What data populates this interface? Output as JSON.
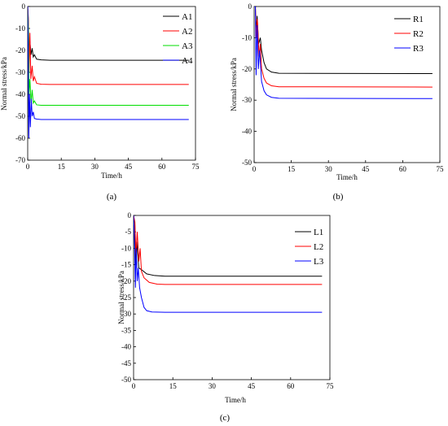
{
  "chart_data": [
    {
      "type": "line",
      "panel_label": "(a)",
      "xlabel": "Time/h",
      "ylabel": "Normal stress/kPa",
      "xlim": [
        0,
        75
      ],
      "ylim": [
        -70,
        0
      ],
      "xticks": [
        0,
        15,
        30,
        45,
        60,
        75
      ],
      "yticks": [
        0,
        -10,
        -20,
        -30,
        -40,
        -50,
        -60,
        -70
      ],
      "legend_position": "top-right",
      "series": [
        {
          "name": "A1",
          "color": "#000000",
          "final": -24.5,
          "points": [
            [
              0,
              0
            ],
            [
              0.3,
              -8
            ],
            [
              0.6,
              -20
            ],
            [
              1,
              -16
            ],
            [
              1.5,
              -22
            ],
            [
              2,
              -19
            ],
            [
              2.5,
              -23
            ],
            [
              3,
              -22
            ],
            [
              4,
              -24
            ],
            [
              6,
              -24.3
            ],
            [
              10,
              -24.5
            ],
            [
              72,
              -24.5
            ]
          ]
        },
        {
          "name": "A2",
          "color": "#ff0000",
          "final": -35.5,
          "points": [
            [
              0,
              0
            ],
            [
              0.3,
              -5
            ],
            [
              0.6,
              -30
            ],
            [
              1,
              -12
            ],
            [
              1.4,
              -33
            ],
            [
              2,
              -27
            ],
            [
              2.5,
              -34
            ],
            [
              3,
              -32
            ],
            [
              4,
              -35
            ],
            [
              6,
              -35.4
            ],
            [
              10,
              -35.5
            ],
            [
              72,
              -35.5
            ]
          ]
        },
        {
          "name": "A3",
          "color": "#00dd00",
          "final": -45.0,
          "points": [
            [
              0,
              0
            ],
            [
              0.3,
              -10
            ],
            [
              0.6,
              -40
            ],
            [
              1,
              -33
            ],
            [
              1.5,
              -44
            ],
            [
              2,
              -38
            ],
            [
              2.5,
              -44
            ],
            [
              3,
              -43
            ],
            [
              4,
              -44.8
            ],
            [
              6,
              -45
            ],
            [
              72,
              -45
            ]
          ]
        },
        {
          "name": "A4",
          "color": "#0000ff",
          "final": -51.5,
          "points": [
            [
              0,
              0
            ],
            [
              0.2,
              -20
            ],
            [
              0.5,
              -60
            ],
            [
              0.8,
              -40
            ],
            [
              1.2,
              -55
            ],
            [
              1.6,
              -42
            ],
            [
              2,
              -50
            ],
            [
              2.5,
              -48
            ],
            [
              3,
              -51
            ],
            [
              4,
              -51.3
            ],
            [
              6,
              -51.5
            ],
            [
              72,
              -51.5
            ]
          ]
        }
      ]
    },
    {
      "type": "line",
      "panel_label": "(b)",
      "xlabel": "Time/h",
      "ylabel": "Normal stress/kPa",
      "xlim": [
        0,
        75
      ],
      "ylim": [
        -50,
        0
      ],
      "xticks": [
        0,
        15,
        30,
        45,
        60,
        75
      ],
      "yticks": [
        0,
        -10,
        -20,
        -30,
        -40,
        -50
      ],
      "legend_position": "top-right",
      "series": [
        {
          "name": "R1",
          "color": "#000000",
          "final": -21.5,
          "points": [
            [
              0,
              0
            ],
            [
              0.5,
              0
            ],
            [
              0.8,
              -8
            ],
            [
              1.2,
              -3
            ],
            [
              1.8,
              -12
            ],
            [
              2.5,
              -10
            ],
            [
              3,
              -14
            ],
            [
              4,
              -18
            ],
            [
              5,
              -20
            ],
            [
              7,
              -21
            ],
            [
              10,
              -21.4
            ],
            [
              72,
              -21.5
            ]
          ]
        },
        {
          "name": "R2",
          "color": "#ff0000",
          "final": -25.8,
          "points": [
            [
              0,
              0
            ],
            [
              0.5,
              0
            ],
            [
              0.8,
              -10
            ],
            [
              1.3,
              -4
            ],
            [
              2,
              -16
            ],
            [
              2.5,
              -12
            ],
            [
              3,
              -20
            ],
            [
              4,
              -23
            ],
            [
              5,
              -24.5
            ],
            [
              7,
              -25.4
            ],
            [
              10,
              -25.7
            ],
            [
              72,
              -25.8
            ]
          ]
        },
        {
          "name": "R3",
          "color": "#0000ff",
          "final": -29.5,
          "points": [
            [
              0,
              0
            ],
            [
              0.5,
              0
            ],
            [
              0.8,
              -22
            ],
            [
              1.2,
              -6
            ],
            [
              1.7,
              -20
            ],
            [
              2.2,
              -14
            ],
            [
              3,
              -24
            ],
            [
              4,
              -27
            ],
            [
              5,
              -28.3
            ],
            [
              7,
              -29.1
            ],
            [
              10,
              -29.4
            ],
            [
              72,
              -29.5
            ]
          ]
        }
      ]
    },
    {
      "type": "line",
      "panel_label": "(c)",
      "xlabel": "Time/h",
      "ylabel": "Normal stress/kPa",
      "xlim": [
        0,
        75
      ],
      "ylim": [
        -50,
        0
      ],
      "xticks": [
        0,
        15,
        30,
        45,
        60,
        75
      ],
      "yticks": [
        0,
        -5,
        -10,
        -15,
        -20,
        -25,
        -30,
        -35,
        -40,
        -45,
        -50
      ],
      "legend_position": "top-right",
      "series": [
        {
          "name": "L1",
          "color": "#000000",
          "final": -18.5,
          "points": [
            [
              0,
              0
            ],
            [
              0.5,
              -3
            ],
            [
              0.8,
              -15
            ],
            [
              1.2,
              -8
            ],
            [
              2,
              -16
            ],
            [
              3,
              -16.5
            ],
            [
              5,
              -17.8
            ],
            [
              8,
              -18.3
            ],
            [
              12,
              -18.5
            ],
            [
              72,
              -18.5
            ]
          ]
        },
        {
          "name": "L2",
          "color": "#ff0000",
          "final": -21.0,
          "points": [
            [
              0,
              0
            ],
            [
              0.5,
              -2
            ],
            [
              0.9,
              -12
            ],
            [
              1.4,
              -5
            ],
            [
              2,
              -14
            ],
            [
              2.5,
              -10
            ],
            [
              3,
              -17
            ],
            [
              4,
              -19
            ],
            [
              6,
              -20.4
            ],
            [
              9,
              -20.9
            ],
            [
              12,
              -21
            ],
            [
              72,
              -21
            ]
          ]
        },
        {
          "name": "L3",
          "color": "#0000ff",
          "final": -29.5,
          "points": [
            [
              0,
              0
            ],
            [
              0.3,
              -6
            ],
            [
              0.7,
              -22
            ],
            [
              1,
              -10
            ],
            [
              1.4,
              -20
            ],
            [
              1.8,
              -16
            ],
            [
              2.3,
              -22
            ],
            [
              3,
              -25
            ],
            [
              4,
              -28
            ],
            [
              5,
              -29
            ],
            [
              7,
              -29.4
            ],
            [
              12,
              -29.5
            ],
            [
              72,
              -29.5
            ]
          ]
        }
      ]
    }
  ]
}
